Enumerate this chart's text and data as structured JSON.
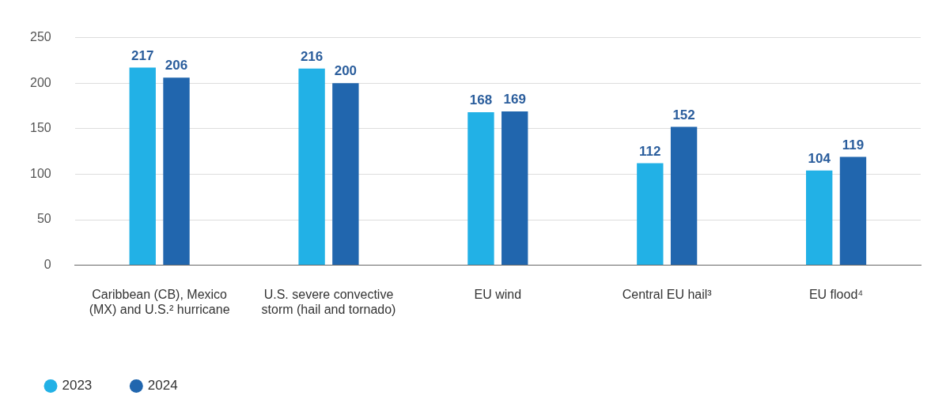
{
  "chart_data": {
    "type": "bar",
    "categories": [
      "Caribbean (CB), Mexico (MX) and U.S.² hurricane",
      "U.S. severe convective storm (hail and tornado)",
      "EU wind",
      "Central EU hail³",
      "EU flood⁴"
    ],
    "series": [
      {
        "name": "2023",
        "color": "#22b1e6",
        "values": [
          217,
          216,
          168,
          112,
          104
        ]
      },
      {
        "name": "2024",
        "color": "#2166ae",
        "values": [
          206,
          200,
          169,
          152,
          119
        ]
      }
    ],
    "ylim": [
      0,
      250
    ],
    "yticks": [
      0,
      50,
      100,
      150,
      200,
      250
    ],
    "grid": "y",
    "legend": "bottom left",
    "data_labels": true
  }
}
